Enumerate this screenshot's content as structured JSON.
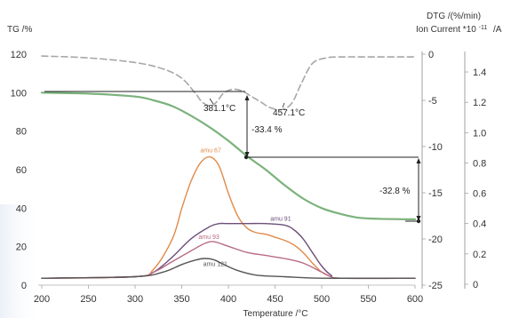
{
  "chart_data": {
    "type": "line",
    "xlabel": "Temperature /°C",
    "ylabel_left": "TG /%",
    "ylabel_right_1": "DTG /(%/min)",
    "ylabel_right_2": "Ion Current *10",
    "ylabel_right_2_exp": "-11",
    "ylabel_right_2_unit": "/A",
    "xlim": [
      200,
      600
    ],
    "ylim_left": [
      0,
      120
    ],
    "ylim_dtg": [
      -25,
      0
    ],
    "ylim_ion": [
      0,
      1.5
    ],
    "x_ticks": [
      "200",
      "250",
      "300",
      "350",
      "400",
      "450",
      "500",
      "550",
      "600"
    ],
    "y_ticks_left": [
      "0",
      "20",
      "40",
      "60",
      "80",
      "100",
      "120"
    ],
    "y_ticks_dtg": [
      "-25",
      "-20",
      "-15",
      "-10",
      "-5",
      "0"
    ],
    "y_ticks_ion": [
      "0",
      "0.2",
      "0.4",
      "0.6",
      "0.8",
      "1.0",
      "1.2",
      "1.4"
    ],
    "series": [
      {
        "axis": "left",
        "color": "#7bb27c",
        "dash": "",
        "x": [
          200,
          250,
          300,
          320,
          340,
          360,
          380,
          400,
          420,
          440,
          460,
          480,
          500,
          520,
          540,
          560,
          580,
          600
        ],
        "y": [
          100,
          99.5,
          98,
          96,
          93,
          88,
          82,
          75,
          67,
          60,
          52,
          45,
          40,
          37,
          35,
          34.5,
          34.3,
          34.2
        ]
      },
      {
        "axis": "dtg",
        "color": "#a7a7a7",
        "dash": "7,4",
        "x": [
          200,
          250,
          300,
          330,
          350,
          365,
          372,
          381,
          388,
          395,
          405,
          415,
          425,
          435,
          445,
          457,
          468,
          478,
          490,
          505,
          520,
          550,
          600
        ],
        "y": [
          -0.2,
          -0.4,
          -0.9,
          -1.6,
          -2.6,
          -4.3,
          -5.2,
          -5.6,
          -5.1,
          -4.2,
          -3.8,
          -4.0,
          -4.6,
          -5.2,
          -5.8,
          -6.0,
          -5.3,
          -3.2,
          -1.0,
          -0.4,
          -0.3,
          -0.3,
          -0.3
        ]
      },
      {
        "name": "amu 67",
        "axis": "ion",
        "color": "#e08a48",
        "dash": "",
        "x": [
          200,
          300,
          320,
          340,
          350,
          360,
          370,
          380,
          390,
          400,
          410,
          420,
          430,
          440,
          450,
          460,
          470,
          480,
          490,
          500,
          510,
          520,
          600
        ],
        "y": [
          0.04,
          0.05,
          0.1,
          0.3,
          0.5,
          0.68,
          0.8,
          0.84,
          0.78,
          0.6,
          0.45,
          0.37,
          0.34,
          0.33,
          0.31,
          0.29,
          0.26,
          0.21,
          0.14,
          0.08,
          0.05,
          0.04,
          0.04
        ]
      },
      {
        "name": "amu 91",
        "axis": "ion",
        "color": "#6d4f7a",
        "dash": "",
        "x": [
          200,
          300,
          320,
          340,
          360,
          380,
          390,
          400,
          420,
          440,
          460,
          470,
          480,
          490,
          500,
          510,
          520,
          600
        ],
        "y": [
          0.04,
          0.05,
          0.08,
          0.18,
          0.3,
          0.38,
          0.4,
          0.4,
          0.4,
          0.4,
          0.39,
          0.36,
          0.3,
          0.21,
          0.12,
          0.06,
          0.04,
          0.04
        ]
      },
      {
        "name": "amu 93",
        "axis": "ion",
        "color": "#b86a86",
        "dash": "",
        "x": [
          200,
          300,
          320,
          340,
          360,
          375,
          385,
          400,
          420,
          440,
          460,
          480,
          500,
          510,
          520,
          600
        ],
        "y": [
          0.04,
          0.05,
          0.08,
          0.15,
          0.22,
          0.27,
          0.28,
          0.25,
          0.21,
          0.19,
          0.17,
          0.14,
          0.08,
          0.05,
          0.04,
          0.04
        ]
      },
      {
        "name": "amu 121",
        "axis": "ion",
        "color": "#555555",
        "dash": "",
        "x": [
          200,
          300,
          330,
          350,
          365,
          375,
          385,
          395,
          410,
          430,
          460,
          500,
          600
        ],
        "y": [
          0.04,
          0.05,
          0.08,
          0.13,
          0.16,
          0.17,
          0.16,
          0.13,
          0.09,
          0.06,
          0.05,
          0.04,
          0.04
        ]
      }
    ],
    "amu_labels": [
      {
        "text": "amu 67",
        "x": 370,
        "y": 0.87,
        "color": "#e08a48"
      },
      {
        "text": "amu 91",
        "x": 445,
        "y": 0.42,
        "color": "#6d4f7a"
      },
      {
        "text": "amu 93",
        "x": 368,
        "y": 0.3,
        "color": "#b86a86"
      },
      {
        "text": "amu 121",
        "x": 373,
        "y": 0.12,
        "color": "#555555"
      }
    ],
    "annotations": {
      "peak1": "381.1°C",
      "peak2": "457.1°C",
      "loss1": "-33.4 %",
      "loss2": "-32.8 %"
    }
  }
}
